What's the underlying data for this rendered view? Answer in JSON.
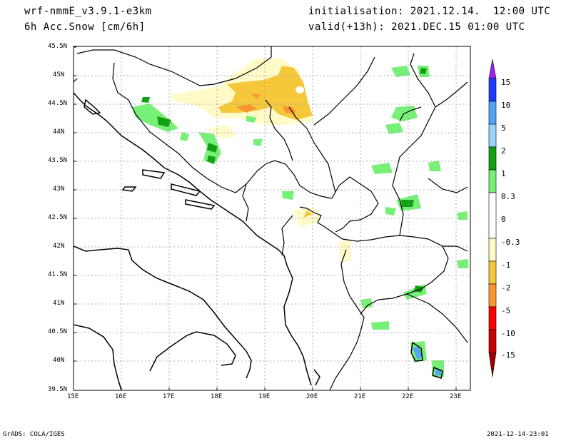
{
  "header": {
    "model": "wrf-nmmE_v3.9.1-e3km",
    "field": "6h Acc.Snow [cm/6h]",
    "init": "initialisation: 2021.12.14.  12:00 UTC",
    "valid": "valid(+13h): 2021.DEC.15 01:00 UTC"
  },
  "map": {
    "lat_labels": [
      "45.5N",
      "45N",
      "44.5N",
      "44N",
      "43.5N",
      "43N",
      "42.5N",
      "42N",
      "41.5N",
      "41N",
      "40.5N",
      "40N",
      "39.5N"
    ],
    "lon_labels": [
      "15E",
      "16E",
      "17E",
      "18E",
      "19E",
      "20E",
      "21E",
      "22E",
      "23E"
    ],
    "lat_range": [
      39.5,
      45.5
    ],
    "lon_range": [
      15,
      23.3
    ],
    "grid": "dotted",
    "features": [
      "coastline",
      "country-borders",
      "snow-accumulation-shading"
    ]
  },
  "colorbar": {
    "labels": [
      "15",
      "10",
      "5",
      "2",
      "1",
      "0.3",
      "0",
      "-0.3",
      "-1",
      "-2",
      "-5",
      "-10",
      "-15"
    ],
    "colors": [
      "#a020f0",
      "#1e3cff",
      "#50a5f5",
      "#96d2fa",
      "#10a010",
      "#78f078",
      "#ffffff",
      "#fffac8",
      "#f5c83c",
      "#fa9632",
      "#ff0000",
      "#c80000",
      "#a00000"
    ]
  },
  "footer": {
    "left": "GrADS: COLA/IGES",
    "right": "2021-12-14-23:01"
  }
}
